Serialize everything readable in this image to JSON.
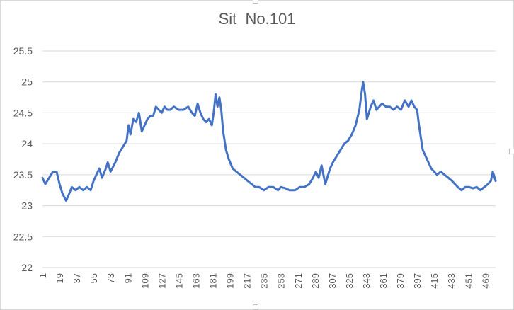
{
  "chart_data": {
    "type": "line",
    "title": "Sit  No.101",
    "xlabel": "",
    "ylabel": "",
    "ylim": [
      22,
      25.5
    ],
    "yticks": [
      "25.5",
      "25",
      "24.5",
      "24",
      "23.5",
      "23",
      "22.5",
      "22"
    ],
    "xticks": [
      "1",
      "19",
      "37",
      "55",
      "73",
      "91",
      "109",
      "127",
      "145",
      "163",
      "181",
      "199",
      "217",
      "235",
      "253",
      "271",
      "289",
      "307",
      "325",
      "343",
      "361",
      "379",
      "397",
      "415",
      "433",
      "451",
      "469"
    ],
    "x_range": [
      1,
      480
    ],
    "grid": "horizontal",
    "legend": "none",
    "series": [
      {
        "color": "#4472c4",
        "x": [
          1,
          4,
          8,
          12,
          16,
          19,
          22,
          26,
          28,
          32,
          36,
          40,
          44,
          48,
          52,
          55,
          58,
          61,
          64,
          68,
          70,
          73,
          78,
          82,
          86,
          90,
          92,
          94,
          97,
          100,
          103,
          106,
          109,
          112,
          115,
          118,
          121,
          124,
          127,
          130,
          133,
          136,
          140,
          145,
          150,
          155,
          159,
          162,
          165,
          168,
          171,
          174,
          177,
          180,
          182,
          184,
          186,
          188,
          190,
          192,
          195,
          198,
          202,
          206,
          210,
          214,
          218,
          222,
          226,
          230,
          235,
          240,
          245,
          250,
          253,
          258,
          262,
          268,
          273,
          278,
          283,
          287,
          290,
          293,
          296,
          298,
          300,
          302,
          305,
          308,
          312,
          316,
          320,
          324,
          328,
          332,
          336,
          338,
          340,
          342,
          344,
          346,
          348,
          351,
          354,
          357,
          360,
          364,
          368,
          372,
          376,
          380,
          384,
          388,
          391,
          394,
          397,
          399,
          401,
          403,
          406,
          409,
          412,
          415,
          418,
          422,
          426,
          430,
          434,
          437,
          440,
          444,
          448,
          452,
          456,
          460,
          464,
          468,
          472,
          475,
          477,
          479,
          480
        ],
        "y": [
          23.45,
          23.35,
          23.45,
          23.55,
          23.55,
          23.35,
          23.2,
          23.08,
          23.15,
          23.3,
          23.25,
          23.3,
          23.25,
          23.3,
          23.25,
          23.4,
          23.5,
          23.6,
          23.45,
          23.6,
          23.7,
          23.55,
          23.7,
          23.85,
          23.95,
          24.05,
          24.3,
          24.15,
          24.4,
          24.35,
          24.5,
          24.2,
          24.3,
          24.4,
          24.45,
          24.45,
          24.6,
          24.55,
          24.5,
          24.6,
          24.55,
          24.55,
          24.6,
          24.55,
          24.55,
          24.6,
          24.5,
          24.45,
          24.65,
          24.5,
          24.4,
          24.35,
          24.4,
          24.3,
          24.5,
          24.8,
          24.6,
          24.75,
          24.55,
          24.2,
          23.9,
          23.75,
          23.6,
          23.55,
          23.5,
          23.45,
          23.4,
          23.35,
          23.3,
          23.3,
          23.25,
          23.3,
          23.3,
          23.25,
          23.3,
          23.28,
          23.25,
          23.25,
          23.3,
          23.3,
          23.35,
          23.45,
          23.55,
          23.45,
          23.65,
          23.5,
          23.35,
          23.45,
          23.6,
          23.7,
          23.8,
          23.9,
          24.0,
          24.05,
          24.15,
          24.3,
          24.55,
          24.8,
          25.0,
          24.8,
          24.4,
          24.5,
          24.6,
          24.7,
          24.55,
          24.6,
          24.65,
          24.6,
          24.6,
          24.55,
          24.6,
          24.55,
          24.7,
          24.6,
          24.7,
          24.6,
          24.55,
          24.3,
          24.1,
          23.9,
          23.8,
          23.7,
          23.6,
          23.55,
          23.5,
          23.55,
          23.5,
          23.45,
          23.4,
          23.35,
          23.3,
          23.25,
          23.3,
          23.3,
          23.28,
          23.3,
          23.25,
          23.3,
          23.35,
          23.4,
          23.55,
          23.45,
          23.4
        ]
      }
    ]
  }
}
